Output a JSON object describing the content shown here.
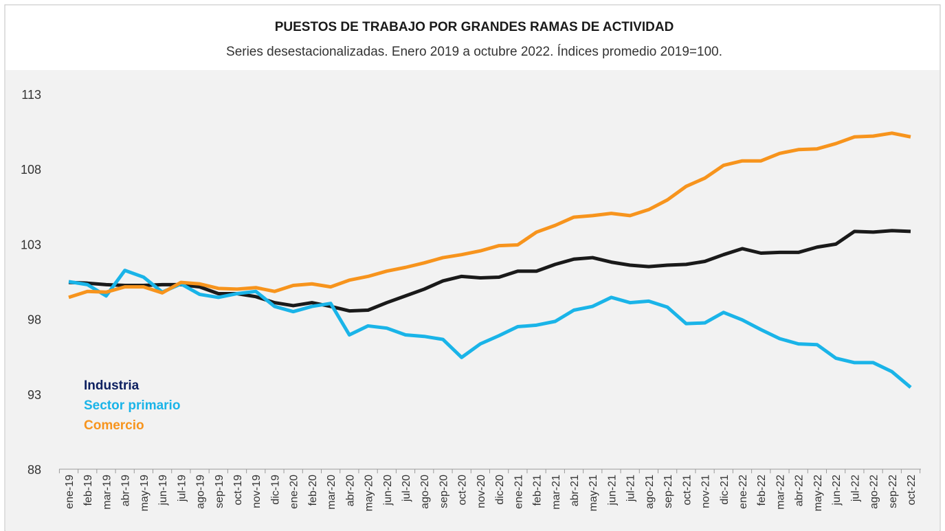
{
  "chart_data": {
    "type": "line",
    "title": "PUESTOS DE TRABAJO POR GRANDES RAMAS DE ACTIVIDAD",
    "subtitle": "Series desestacionalizadas. Enero 2019 a octubre 2022. Índices promedio 2019=100.",
    "categories": [
      "ene-19",
      "feb-19",
      "mar-19",
      "abr-19",
      "may-19",
      "jun-19",
      "jul-19",
      "ago-19",
      "sep-19",
      "oct-19",
      "nov-19",
      "dic-19",
      "ene-20",
      "feb-20",
      "mar-20",
      "abr-20",
      "may-20",
      "jun-20",
      "jul-20",
      "ago-20",
      "sep-20",
      "oct-20",
      "nov-20",
      "dic-20",
      "ene-21",
      "feb-21",
      "mar-21",
      "abr-21",
      "may-21",
      "jun-21",
      "jul-21",
      "ago-21",
      "sep-21",
      "oct-21",
      "nov-21",
      "dic-21",
      "ene-22",
      "feb-22",
      "mar-22",
      "abr-22",
      "may-22",
      "jun-22",
      "jul-22",
      "ago-22",
      "sep-22",
      "oct-22"
    ],
    "series": [
      {
        "name": "Industria",
        "color": "#1a1a1a",
        "legend_color": "#0d2060",
        "values": [
          100.45,
          100.4,
          100.3,
          100.25,
          100.25,
          100.3,
          100.3,
          100.15,
          99.7,
          99.7,
          99.5,
          99.1,
          98.9,
          99.1,
          98.85,
          98.55,
          98.6,
          99.1,
          99.55,
          100.0,
          100.55,
          100.85,
          100.75,
          100.8,
          101.2,
          101.2,
          101.65,
          102.0,
          102.1,
          101.8,
          101.6,
          101.5,
          101.6,
          101.65,
          101.85,
          102.3,
          102.7,
          102.4,
          102.45,
          102.45,
          102.8,
          103.0,
          103.85,
          103.8,
          103.9,
          103.85
        ]
      },
      {
        "name": "Sector primario",
        "color": "#1ab4e8",
        "values": [
          100.5,
          100.3,
          99.55,
          101.25,
          100.8,
          99.8,
          100.35,
          99.65,
          99.45,
          99.7,
          99.85,
          98.85,
          98.5,
          98.85,
          99.05,
          96.95,
          97.55,
          97.4,
          96.95,
          96.85,
          96.65,
          95.45,
          96.35,
          96.9,
          97.5,
          97.6,
          97.85,
          98.6,
          98.85,
          99.45,
          99.1,
          99.2,
          98.8,
          97.7,
          97.75,
          98.45,
          97.95,
          97.3,
          96.7,
          96.35,
          96.3,
          95.4,
          95.1,
          95.1,
          94.5,
          93.45
        ]
      },
      {
        "name": "Comercio",
        "color": "#f7941d",
        "values": [
          99.45,
          99.85,
          99.8,
          100.15,
          100.15,
          99.75,
          100.45,
          100.35,
          100.05,
          100.0,
          100.1,
          99.85,
          100.25,
          100.35,
          100.15,
          100.6,
          100.85,
          101.2,
          101.45,
          101.75,
          102.1,
          102.3,
          102.55,
          102.9,
          102.95,
          103.8,
          104.25,
          104.8,
          104.9,
          105.05,
          104.9,
          105.3,
          105.95,
          106.85,
          107.4,
          108.25,
          108.55,
          108.55,
          109.05,
          109.3,
          109.35,
          109.7,
          110.15,
          110.2,
          110.4,
          110.15
        ]
      }
    ],
    "ylim": [
      88,
      113
    ],
    "yticks": [
      88,
      93,
      98,
      103,
      108,
      113
    ]
  }
}
